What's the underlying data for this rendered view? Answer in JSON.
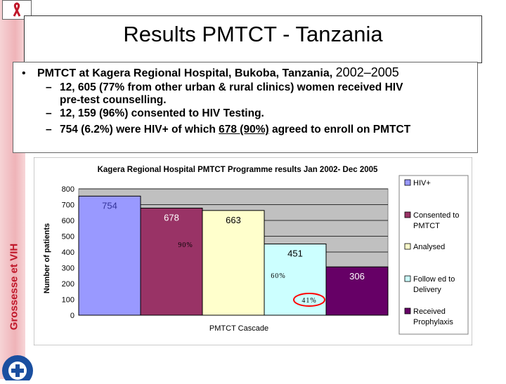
{
  "slide": {
    "title": "Results PMTCT - Tanzania",
    "sidebar_text": "Grossesse et VIH",
    "bullet": {
      "main": "PMTCT  at Kagera Regional Hospital, Bukoba, Tanzania,",
      "years": "2002–2005",
      "sub1_line1": "12, 605 (77% from other urban & rural clinics) women received HIV",
      "sub1_line2": "pre-test counselling.",
      "sub2": "12, 159 (96%) consented to HIV Testing.",
      "sub3_pre": "754 (6.2%) were HIV+ of which",
      "sub3_u": "678 (90%)",
      "sub3_post": "agreed to enroll on PMTCT"
    }
  },
  "chart_data": {
    "type": "bar",
    "title": "Kagera Regional Hospital PMTCT Programme results Jan 2002- Dec 2005",
    "xlabel": "PMTCT Cascade",
    "ylabel": "Number of patients",
    "ylim": [
      0,
      800
    ],
    "yticks": [
      0,
      100,
      200,
      300,
      400,
      500,
      600,
      700,
      800
    ],
    "grid": true,
    "legend_position": "right",
    "series": [
      {
        "name": "HIV+",
        "value": 754,
        "color": "#9999ff",
        "label_color": "#333399"
      },
      {
        "name": "Consented to PMTCT",
        "value": 678,
        "color": "#993366",
        "label_color": "#ffffff"
      },
      {
        "name": "Analysed",
        "value": 663,
        "color": "#ffffcc",
        "label_color": "#000000"
      },
      {
        "name": "Follow ed to Delivery",
        "value": 451,
        "color": "#ccffff",
        "label_color": "#000000"
      },
      {
        "name": "Received Prophylaxis",
        "value": 306,
        "color": "#660066",
        "label_color": "#ffffff"
      }
    ],
    "annotations": [
      "90%",
      "60%",
      "41%"
    ]
  }
}
